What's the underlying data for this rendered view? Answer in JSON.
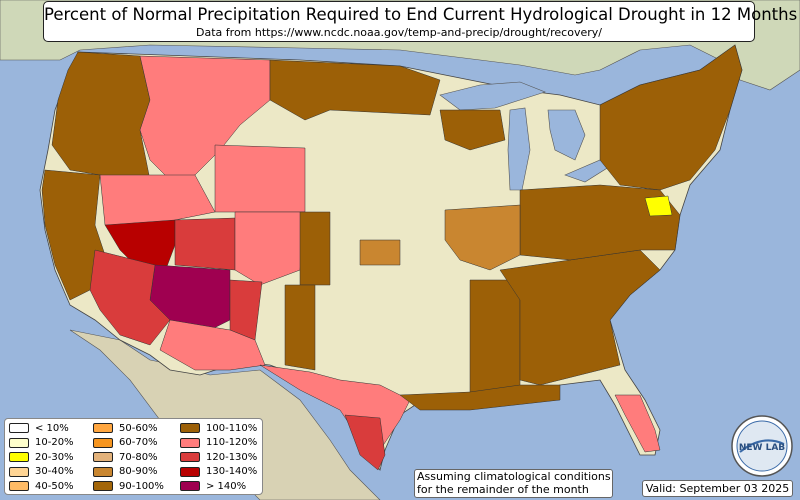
{
  "title": "Percent of Normal Precipitation Required to End Current Hydrological Drought in 12 Months",
  "subtitle": "Data from https://www.ncdc.noaa.gov/temp-and-precip/drought/recovery/",
  "note_line1": "Assuming climatological conditions",
  "note_line2": "for the remainder of the month",
  "valid": "Valid: September 03 2025",
  "logo_text": "NEW LAB",
  "colors": {
    "ocean": "#9ab6dc",
    "land": "#ece8c6",
    "lt10": "#ffffff",
    "10_20": "#ffffcc",
    "20_30": "#ffff00",
    "30_40": "#ffd595",
    "40_50": "#ffbb66",
    "50_60": "#ffa640",
    "60_70": "#f6951f",
    "70_80": "#e3b27b",
    "80_90": "#c98630",
    "90_100": "#a36609",
    "100_110": "#9c6007",
    "110_120": "#ff7c7c",
    "120_130": "#d93c3c",
    "130_140": "#b80000",
    "gt140": "#9f0050"
  },
  "legend": [
    {
      "label": "< 10%",
      "key": "lt10"
    },
    {
      "label": "10-20%",
      "key": "10_20"
    },
    {
      "label": "20-30%",
      "key": "20_30"
    },
    {
      "label": "30-40%",
      "key": "30_40"
    },
    {
      "label": "40-50%",
      "key": "40_50"
    },
    {
      "label": "50-60%",
      "key": "50_60"
    },
    {
      "label": "60-70%",
      "key": "60_70"
    },
    {
      "label": "70-80%",
      "key": "70_80"
    },
    {
      "label": "80-90%",
      "key": "80_90"
    },
    {
      "label": "90-100%",
      "key": "90_100"
    },
    {
      "label": "100-110%",
      "key": "100_110"
    },
    {
      "label": "110-120%",
      "key": "110_120"
    },
    {
      "label": "120-130%",
      "key": "120_130"
    },
    {
      "label": "130-140%",
      "key": "130_140"
    },
    {
      "label": "> 140%",
      "key": "gt140"
    }
  ]
}
